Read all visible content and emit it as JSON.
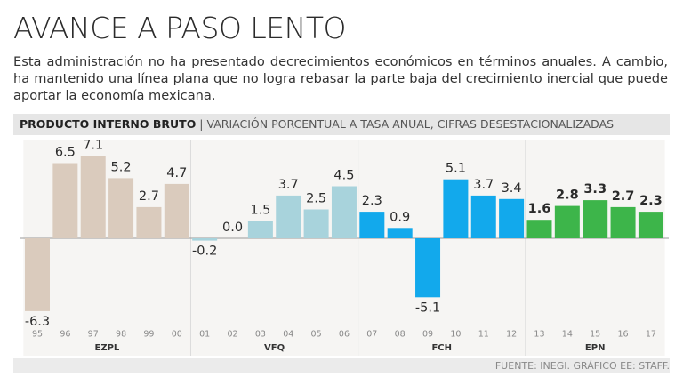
{
  "title": "AVANCE A PASO LENTO",
  "subtitle": "Esta administración no ha presentado decrecimientos económicos en términos anuales. A cambio, ha mantenido una línea plana que no logra rebasar la parte baja del crecimiento inercial que puede aportar la economía mexicana.",
  "chart_data": {
    "type": "bar",
    "title": "PRODUCTO INTERNO BRUTO",
    "subtitle": "VARIACIÓN PORCENTUAL A TASA ANUAL, CIFRAS DESESTACIONALIZADAS",
    "categories": [
      "95",
      "96",
      "97",
      "98",
      "99",
      "00",
      "01",
      "02",
      "03",
      "04",
      "05",
      "06",
      "07",
      "08",
      "09",
      "10",
      "11",
      "12",
      "13",
      "14",
      "15",
      "16",
      "17"
    ],
    "series": [
      {
        "name": "EZPL",
        "color": "#dacbbd",
        "values": [
          -6.3,
          6.5,
          7.1,
          5.2,
          2.7,
          4.7,
          null,
          null,
          null,
          null,
          null,
          null,
          null,
          null,
          null,
          null,
          null,
          null,
          null,
          null,
          null,
          null,
          null
        ],
        "value_labels": [
          "-6.3",
          "6.5",
          "7.1",
          "5.2",
          "2.7",
          "4.7",
          null,
          null,
          null,
          null,
          null,
          null,
          null,
          null,
          null,
          null,
          null,
          null,
          null,
          null,
          null,
          null,
          null
        ]
      },
      {
        "name": "VFQ",
        "color": "#a8d3dc",
        "values": [
          null,
          null,
          null,
          null,
          null,
          null,
          -0.2,
          0,
          1.5,
          3.7,
          2.5,
          4.5,
          null,
          null,
          null,
          null,
          null,
          null,
          null,
          null,
          null,
          null,
          null
        ],
        "value_labels": [
          null,
          null,
          null,
          null,
          null,
          null,
          "-0.2",
          "0.0",
          "1.5",
          "3.7",
          "2.5",
          "4.5",
          null,
          null,
          null,
          null,
          null,
          null,
          null,
          null,
          null,
          null,
          null
        ]
      },
      {
        "name": "FCH",
        "color": "#12a9ec",
        "values": [
          null,
          null,
          null,
          null,
          null,
          null,
          null,
          null,
          null,
          null,
          null,
          null,
          2.3,
          0.9,
          -5.1,
          5.1,
          3.7,
          3.4,
          null,
          null,
          null,
          null,
          null
        ],
        "value_labels": [
          null,
          null,
          null,
          null,
          null,
          null,
          null,
          null,
          null,
          null,
          null,
          null,
          "2.3",
          "0.9",
          "-5.1",
          "5.1",
          "3.7",
          "3.4",
          null,
          null,
          null,
          null,
          null
        ]
      },
      {
        "name": "EPN",
        "color": "#3db54a",
        "values": [
          null,
          null,
          null,
          null,
          null,
          null,
          null,
          null,
          null,
          null,
          null,
          null,
          null,
          null,
          null,
          null,
          null,
          null,
          1.6,
          2.8,
          3.3,
          2.7,
          2.3
        ],
        "value_labels": [
          null,
          null,
          null,
          null,
          null,
          null,
          null,
          null,
          null,
          null,
          null,
          null,
          null,
          null,
          null,
          null,
          null,
          null,
          "1.6",
          "2.8",
          "3.3",
          "2.7",
          "2.3"
        ]
      }
    ]
  },
  "source": "FUENTE: INEGI. GRÁFICO EE: STAFF."
}
